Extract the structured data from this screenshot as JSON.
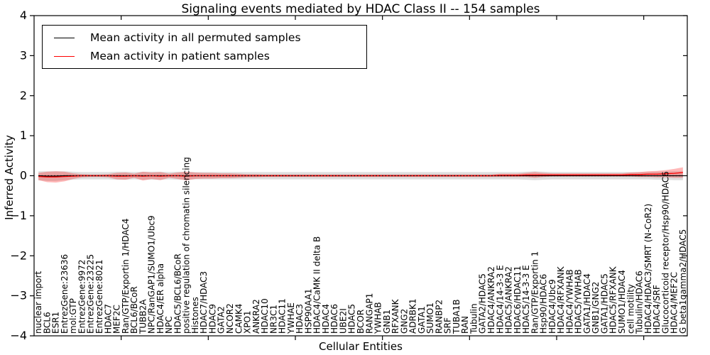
{
  "figure": {
    "background": "#ffffff"
  },
  "chart_data": {
    "type": "line",
    "title": "Signaling events mediated by HDAC Class II -- 154 samples",
    "xlabel": "Cellular Entities",
    "ylabel": "Inferred Activity",
    "ylim": [
      -4,
      4
    ],
    "yticks": [
      4,
      3,
      2,
      1,
      0,
      -1,
      -2,
      -3,
      -4
    ],
    "x_major_tick_every": 10,
    "grid": false,
    "legend_position": "upper left",
    "categories": [
      "nuclear import",
      "BCL6",
      "ESR1",
      "EntrezGene:23636",
      "mol:GTP",
      "EntrezGene:9972",
      "EntrezGene:23225",
      "EntrezGene:8021",
      "HDAC7",
      "MEF2C",
      "Ran/GTP/Exportin 1/HDAC4",
      "BCL6/BCoR",
      "TUBB2A",
      "NPC/RanGAP1/SUMO1/Ubc9",
      "HDAC4/ER alpha",
      "NPC",
      "HDAC5/BCL6/BCoR",
      "positive regulation of chromatin silencing",
      "Histones",
      "HDAC7/HDAC3",
      "HDAC9",
      "GATA2",
      "NCOR2",
      "CAMK4",
      "XPO1",
      "ANKRA2",
      "HDAC10",
      "NR3C1",
      "HDAC11",
      "YWHAE",
      "HDAC3",
      "HSP90AA1",
      "HDAC4/CaMK II delta B",
      "HDAC4",
      "HDAC6",
      "UBE2I",
      "HDAC5",
      "BCOR",
      "RANGAP1",
      "YWHAB",
      "GNB1",
      "RFXANK",
      "GNG2",
      "ADRBK1",
      "GATA1",
      "SUMO1",
      "RANBP2",
      "SRF",
      "TUBA1B",
      "RAN",
      "Tubulin",
      "GATA2/HDAC5",
      "HDAC4/ANKRA2",
      "HDAC4/14-3-3 E",
      "HDAC5/ANKRA2",
      "HDAC6/HDAC11",
      "HDAC5/14-3-3 E",
      "Ran/GTP/Exportin 1",
      "Hsp90/HDAC6",
      "HDAC4/Ubc9",
      "HDAC4/RFXANK",
      "HDAC4/YWHAB",
      "HDAC5/YWHAB",
      "GATA1/HDAC4",
      "GNB1/GNG2",
      "GATA1/HDAC5",
      "HDAC5/RFXANK",
      "SUMO1/HDAC4",
      "cell motility",
      "Tubulin/HDAC6",
      "HDAC4/HDAC3/SMRT (N-CoR2)",
      "HDAC4/SRF",
      "Glucocorticoid receptor/Hsp90/HDAC6",
      "HDAC4/MEF2C",
      "G beta1gamma2/HDAC5"
    ],
    "series": [
      {
        "name": "Mean activity in all permuted samples",
        "color": "#000000",
        "band_color": "#c8c8c8",
        "band_opacity": 0.6,
        "values": [
          0,
          -0.01,
          -0.01,
          0,
          0,
          0,
          0,
          0,
          0,
          0,
          0,
          0,
          0,
          0,
          0,
          0,
          0,
          0,
          0,
          0,
          0,
          0,
          0,
          0,
          0,
          0,
          0,
          0,
          0,
          0,
          0,
          0,
          0,
          0,
          0,
          0,
          0,
          0,
          0,
          0,
          0,
          0,
          0,
          0,
          0,
          0,
          0,
          0,
          0,
          0,
          0,
          0,
          0,
          0,
          0,
          0,
          0,
          0,
          0,
          0,
          0,
          0,
          0,
          0,
          0,
          0,
          0,
          0,
          0,
          0,
          0,
          0,
          0,
          0,
          0
        ],
        "band": [
          0.11,
          0.12,
          0.12,
          0.11,
          0.1,
          0.09,
          0.09,
          0.09,
          0.09,
          0.1,
          0.1,
          0.09,
          0.1,
          0.1,
          0.1,
          0.09,
          0.1,
          0.1,
          0.09,
          0.09,
          0.09,
          0.09,
          0.09,
          0.09,
          0.09,
          0.09,
          0.09,
          0.09,
          0.09,
          0.09,
          0.09,
          0.09,
          0.09,
          0.09,
          0.09,
          0.09,
          0.09,
          0.09,
          0.09,
          0.09,
          0.09,
          0.09,
          0.09,
          0.09,
          0.09,
          0.09,
          0.09,
          0.09,
          0.09,
          0.09,
          0.09,
          0.09,
          0.09,
          0.09,
          0.09,
          0.09,
          0.1,
          0.11,
          0.1,
          0.09,
          0.09,
          0.09,
          0.09,
          0.09,
          0.09,
          0.09,
          0.09,
          0.09,
          0.09,
          0.09,
          0.09,
          0.1,
          0.1,
          0.11,
          0.11
        ]
      },
      {
        "name": "Mean activity in patient samples",
        "color": "#ff0000",
        "band_color": "#ff0000",
        "band_opacity": 0.28,
        "values": [
          -0.02,
          -0.03,
          -0.03,
          -0.02,
          -0.01,
          0,
          0,
          0,
          0,
          -0.01,
          -0.01,
          0,
          -0.01,
          0,
          -0.01,
          0,
          0,
          -0.01,
          0,
          0,
          0,
          0,
          0,
          0,
          0,
          0,
          0,
          0,
          0,
          0,
          0,
          0,
          0,
          0,
          0,
          0,
          0,
          0,
          0,
          0,
          0,
          0,
          0,
          0,
          0,
          0,
          0,
          0,
          0,
          0,
          0,
          0,
          0,
          0.01,
          0.01,
          0.01,
          0.02,
          0.02,
          0.02,
          0.02,
          0.02,
          0.02,
          0.02,
          0.02,
          0.02,
          0.02,
          0.02,
          0.02,
          0.03,
          0.03,
          0.04,
          0.04,
          0.05,
          0.06,
          0.08
        ],
        "band": [
          0.09,
          0.13,
          0.14,
          0.12,
          0.07,
          0.04,
          0.03,
          0.03,
          0.04,
          0.08,
          0.09,
          0.05,
          0.11,
          0.08,
          0.1,
          0.05,
          0.08,
          0.11,
          0.08,
          0.07,
          0.07,
          0.06,
          0.06,
          0.05,
          0.04,
          0.04,
          0.03,
          0.03,
          0.03,
          0.03,
          0.03,
          0.03,
          0.03,
          0.03,
          0.03,
          0.03,
          0.03,
          0.03,
          0.03,
          0.03,
          0.03,
          0.03,
          0.03,
          0.03,
          0.03,
          0.03,
          0.03,
          0.03,
          0.03,
          0.03,
          0.03,
          0.03,
          0.03,
          0.04,
          0.04,
          0.04,
          0.05,
          0.07,
          0.05,
          0.04,
          0.04,
          0.04,
          0.04,
          0.04,
          0.04,
          0.04,
          0.04,
          0.04,
          0.05,
          0.06,
          0.07,
          0.08,
          0.09,
          0.11,
          0.13
        ]
      }
    ],
    "reference_line": {
      "value": 0,
      "color": "#000000",
      "style": "dotted"
    }
  }
}
